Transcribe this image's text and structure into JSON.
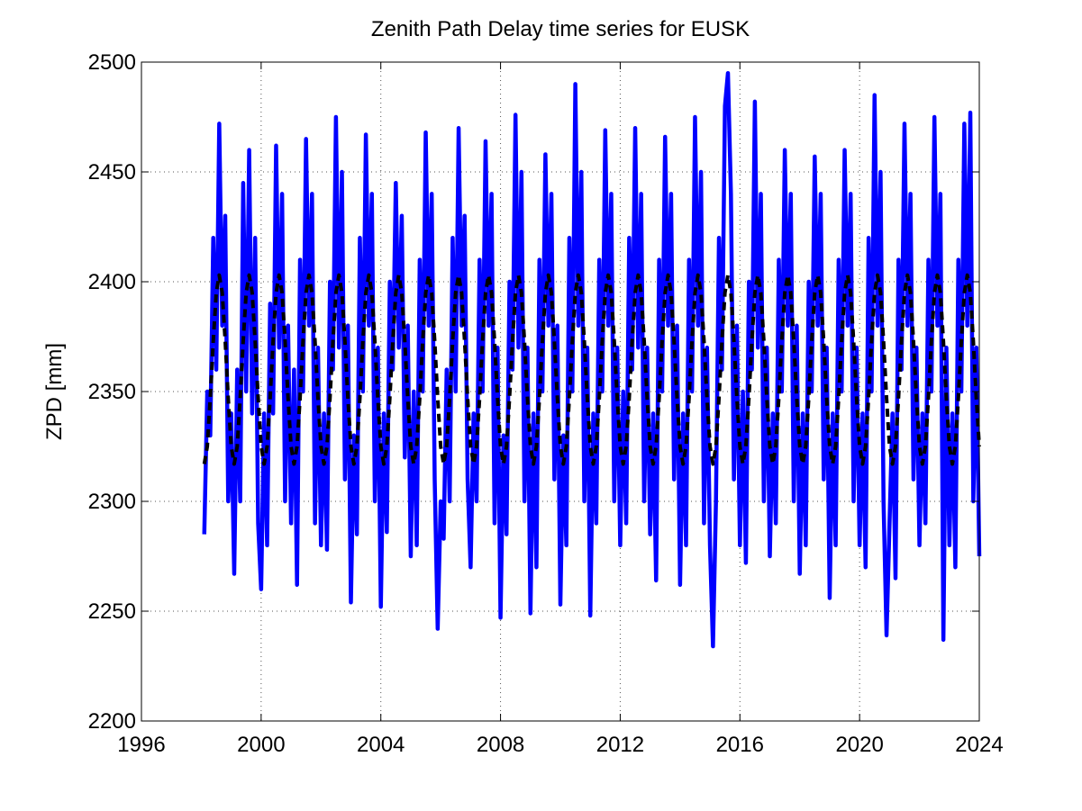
{
  "chart_data": {
    "type": "line",
    "title": "Zenith Path Delay time series for EUSK",
    "y_label": "ZPD [mm]",
    "xlim": [
      1996,
      2024
    ],
    "xticks": [
      1996,
      2000,
      2004,
      2008,
      2012,
      2016,
      2020,
      2024
    ],
    "ylim": [
      2200,
      2500
    ],
    "yticks": [
      2200,
      2250,
      2300,
      2350,
      2400,
      2450,
      2500
    ],
    "grid": true,
    "x": [
      1998.1,
      1998.2,
      1998.3,
      1998.4,
      1998.5,
      1998.6,
      1998.7,
      1998.8,
      1998.9,
      1999.0,
      1999.1,
      1999.2,
      1999.3,
      1999.4,
      1999.5,
      1999.6,
      1999.7,
      1999.8,
      1999.9,
      2000.0,
      2000.1,
      2000.2,
      2000.3,
      2000.4,
      2000.5,
      2000.6,
      2000.7,
      2000.8,
      2000.9,
      2001.0,
      2001.1,
      2001.2,
      2001.3,
      2001.4,
      2001.5,
      2001.6,
      2001.7,
      2001.8,
      2001.9,
      2002.0,
      2002.1,
      2002.2,
      2002.3,
      2002.4,
      2002.5,
      2002.6,
      2002.7,
      2002.8,
      2002.9,
      2003.0,
      2003.1,
      2003.2,
      2003.3,
      2003.4,
      2003.5,
      2003.6,
      2003.7,
      2003.8,
      2003.9,
      2004.0,
      2004.1,
      2004.2,
      2004.3,
      2004.4,
      2004.5,
      2004.6,
      2004.7,
      2004.8,
      2004.9,
      2005.0,
      2005.1,
      2005.2,
      2005.3,
      2005.4,
      2005.5,
      2005.6,
      2005.7,
      2005.8,
      2005.9,
      2006.0,
      2006.1,
      2006.2,
      2006.3,
      2006.4,
      2006.5,
      2006.6,
      2006.7,
      2006.8,
      2006.9,
      2007.0,
      2007.1,
      2007.2,
      2007.3,
      2007.4,
      2007.5,
      2007.6,
      2007.7,
      2007.8,
      2007.9,
      2008.0,
      2008.1,
      2008.2,
      2008.3,
      2008.4,
      2008.5,
      2008.6,
      2008.7,
      2008.8,
      2008.9,
      2009.0,
      2009.1,
      2009.2,
      2009.3,
      2009.4,
      2009.5,
      2009.6,
      2009.7,
      2009.8,
      2009.9,
      2010.0,
      2010.1,
      2010.2,
      2010.3,
      2010.4,
      2010.5,
      2010.6,
      2010.7,
      2010.8,
      2010.9,
      2011.0,
      2011.1,
      2011.2,
      2011.3,
      2011.4,
      2011.5,
      2011.6,
      2011.7,
      2011.8,
      2011.9,
      2012.0,
      2012.1,
      2012.2,
      2012.3,
      2012.4,
      2012.5,
      2012.6,
      2012.7,
      2012.8,
      2012.9,
      2013.0,
      2013.1,
      2013.2,
      2013.3,
      2013.4,
      2013.5,
      2013.6,
      2013.7,
      2013.8,
      2013.9,
      2014.0,
      2014.1,
      2014.2,
      2014.3,
      2014.4,
      2014.5,
      2014.6,
      2014.7,
      2014.8,
      2014.9,
      2015.0,
      2015.1,
      2015.2,
      2015.3,
      2015.4,
      2015.5,
      2015.6,
      2015.7,
      2015.8,
      2015.9,
      2016.0,
      2016.1,
      2016.2,
      2016.3,
      2016.4,
      2016.5,
      2016.6,
      2016.7,
      2016.8,
      2016.9,
      2017.0,
      2017.1,
      2017.2,
      2017.3,
      2017.4,
      2017.5,
      2017.6,
      2017.7,
      2017.8,
      2017.9,
      2018.0,
      2018.1,
      2018.2,
      2018.3,
      2018.4,
      2018.5,
      2018.6,
      2018.7,
      2018.8,
      2018.9,
      2019.0,
      2019.1,
      2019.2,
      2019.3,
      2019.4,
      2019.5,
      2019.6,
      2019.7,
      2019.8,
      2019.9,
      2020.0,
      2020.1,
      2020.2,
      2020.3,
      2020.4,
      2020.5,
      2020.6,
      2020.7,
      2020.8,
      2020.9,
      2021.0,
      2021.1,
      2021.2,
      2021.3,
      2021.4,
      2021.5,
      2021.6,
      2021.7,
      2021.8,
      2021.9,
      2022.0,
      2022.1,
      2022.2,
      2022.3,
      2022.4,
      2022.5,
      2022.6,
      2022.7,
      2022.8,
      2022.9,
      2023.0,
      2023.1,
      2023.2,
      2023.3,
      2023.4,
      2023.5,
      2023.6,
      2023.7,
      2023.8,
      2023.9,
      2024.0
    ],
    "series": [
      {
        "color": "#0000ff",
        "dashed": false,
        "values": [
          2285,
          2350,
          2330,
          2420,
          2360,
          2472,
          2380,
          2430,
          2300,
          2340,
          2267,
          2360,
          2300,
          2445,
          2350,
          2460,
          2340,
          2420,
          2290,
          2260,
          2340,
          2280,
          2390,
          2340,
          2462,
          2370,
          2440,
          2300,
          2380,
          2290,
          2360,
          2262,
          2410,
          2350,
          2465,
          2380,
          2440,
          2290,
          2370,
          2280,
          2340,
          2278,
          2400,
          2360,
          2475,
          2370,
          2450,
          2310,
          2380,
          2254,
          2330,
          2285,
          2420,
          2350,
          2467,
          2380,
          2440,
          2300,
          2370,
          2252,
          2340,
          2286,
          2400,
          2360,
          2445,
          2370,
          2430,
          2320,
          2380,
          2275,
          2350,
          2280,
          2410,
          2350,
          2468,
          2380,
          2440,
          2310,
          2242,
          2300,
          2283,
          2360,
          2300,
          2420,
          2350,
          2470,
          2380,
          2430,
          2310,
          2270,
          2340,
          2300,
          2410,
          2350,
          2464,
          2380,
          2440,
          2290,
          2370,
          2247,
          2330,
          2285,
          2400,
          2360,
          2476,
          2370,
          2450,
          2300,
          2370,
          2249,
          2340,
          2270,
          2410,
          2350,
          2458,
          2380,
          2440,
          2310,
          2380,
          2253,
          2330,
          2280,
          2420,
          2350,
          2490,
          2380,
          2450,
          2300,
          2370,
          2248,
          2340,
          2290,
          2410,
          2350,
          2469,
          2380,
          2440,
          2300,
          2370,
          2280,
          2350,
          2290,
          2420,
          2360,
          2470,
          2370,
          2440,
          2300,
          2370,
          2285,
          2340,
          2264,
          2410,
          2350,
          2466,
          2380,
          2440,
          2310,
          2380,
          2262,
          2340,
          2280,
          2410,
          2350,
          2475,
          2380,
          2450,
          2290,
          2370,
          2280,
          2234,
          2300,
          2420,
          2360,
          2480,
          2495,
          2440,
          2310,
          2380,
          2280,
          2350,
          2272,
          2400,
          2360,
          2482,
          2370,
          2440,
          2300,
          2370,
          2275,
          2340,
          2290,
          2410,
          2350,
          2460,
          2380,
          2440,
          2300,
          2380,
          2267,
          2340,
          2280,
          2400,
          2350,
          2457,
          2380,
          2440,
          2310,
          2370,
          2256,
          2340,
          2280,
          2410,
          2350,
          2460,
          2380,
          2440,
          2300,
          2370,
          2280,
          2340,
          2270,
          2420,
          2350,
          2485,
          2380,
          2450,
          2300,
          2239,
          2290,
          2340,
          2265,
          2410,
          2360,
          2472,
          2380,
          2440,
          2310,
          2370,
          2280,
          2340,
          2290,
          2410,
          2350,
          2475,
          2380,
          2440,
          2237,
          2370,
          2280,
          2340,
          2270,
          2410,
          2350,
          2472,
          2380,
          2477,
          2300,
          2370,
          2275
        ]
      },
      {
        "color": "#000000",
        "dashed": true,
        "values": [
          2317,
          2325,
          2347,
          2373,
          2395,
          2403,
          2395,
          2373,
          2347,
          2325,
          2317,
          2325,
          2347,
          2373,
          2395,
          2403,
          2395,
          2373,
          2347,
          2325,
          2317,
          2325,
          2347,
          2373,
          2395,
          2403,
          2395,
          2373,
          2347,
          2325,
          2317,
          2325,
          2347,
          2373,
          2395,
          2403,
          2395,
          2373,
          2347,
          2325,
          2317,
          2325,
          2347,
          2373,
          2395,
          2403,
          2395,
          2373,
          2347,
          2325,
          2317,
          2325,
          2347,
          2373,
          2395,
          2403,
          2395,
          2373,
          2347,
          2325,
          2317,
          2325,
          2347,
          2373,
          2395,
          2403,
          2395,
          2373,
          2347,
          2325,
          2317,
          2325,
          2347,
          2373,
          2395,
          2403,
          2395,
          2373,
          2347,
          2325,
          2317,
          2325,
          2347,
          2373,
          2395,
          2403,
          2395,
          2373,
          2347,
          2325,
          2317,
          2325,
          2347,
          2373,
          2395,
          2403,
          2395,
          2373,
          2347,
          2325,
          2317,
          2325,
          2347,
          2373,
          2395,
          2403,
          2395,
          2373,
          2347,
          2325,
          2317,
          2325,
          2347,
          2373,
          2395,
          2403,
          2395,
          2373,
          2347,
          2325,
          2317,
          2325,
          2347,
          2373,
          2395,
          2403,
          2395,
          2373,
          2347,
          2325,
          2317,
          2325,
          2347,
          2373,
          2395,
          2403,
          2395,
          2373,
          2347,
          2325,
          2317,
          2325,
          2347,
          2373,
          2395,
          2403,
          2395,
          2373,
          2347,
          2325,
          2317,
          2325,
          2347,
          2373,
          2395,
          2403,
          2395,
          2373,
          2347,
          2325,
          2317,
          2325,
          2347,
          2373,
          2395,
          2403,
          2395,
          2373,
          2347,
          2325,
          2317,
          2325,
          2347,
          2373,
          2395,
          2403,
          2395,
          2373,
          2347,
          2325,
          2317,
          2325,
          2347,
          2373,
          2395,
          2403,
          2395,
          2373,
          2347,
          2325,
          2317,
          2325,
          2347,
          2373,
          2395,
          2403,
          2395,
          2373,
          2347,
          2325,
          2317,
          2325,
          2347,
          2373,
          2395,
          2403,
          2395,
          2373,
          2347,
          2325,
          2317,
          2325,
          2347,
          2373,
          2395,
          2403,
          2395,
          2373,
          2347,
          2325,
          2317,
          2325,
          2347,
          2373,
          2395,
          2403,
          2395,
          2373,
          2347,
          2325,
          2317,
          2325,
          2347,
          2373,
          2395,
          2403,
          2395,
          2373,
          2347,
          2325,
          2317,
          2325,
          2347,
          2373,
          2395,
          2403,
          2395,
          2373,
          2347,
          2325,
          2317,
          2325,
          2347,
          2373,
          2395,
          2403,
          2395,
          2373,
          2347,
          2325
        ]
      }
    ]
  }
}
